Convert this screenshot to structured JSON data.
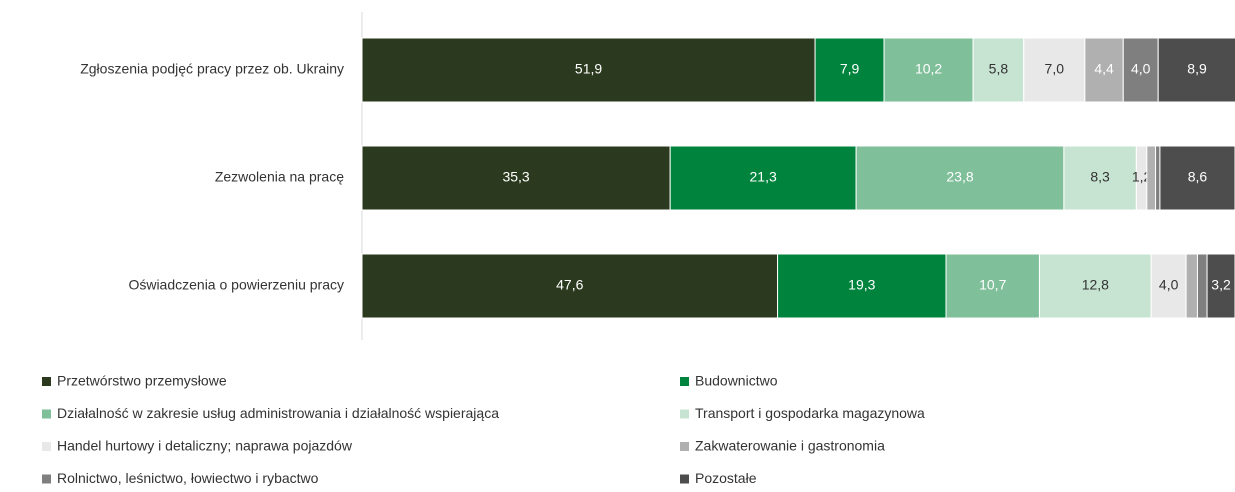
{
  "chart_data": {
    "type": "stacked_bar_horizontal",
    "categories": [
      "Zgłoszenia podjęć pracy przez ob. Ukrainy",
      "Zezwolenia na pracę",
      "Oświadczenia o powierzeniu pracy"
    ],
    "xlim": [
      0,
      100
    ],
    "series": [
      {
        "name": "Przetwórstwo przemysłowe",
        "color": "#2b3a1e",
        "values": [
          51.9,
          35.3,
          47.6
        ],
        "value_labels": [
          "51,9",
          "35,3",
          "47,6"
        ]
      },
      {
        "name": "Budownictwo",
        "color": "#00843d",
        "values": [
          7.9,
          21.3,
          19.3
        ],
        "value_labels": [
          "7,9",
          "21,3",
          "19,3"
        ]
      },
      {
        "name": "Działalność w zakresie usług administrowania i działalność wspierająca",
        "color": "#7fbf9a",
        "values": [
          10.2,
          23.8,
          10.7
        ],
        "value_labels": [
          "10,2",
          "23,8",
          "10,7"
        ]
      },
      {
        "name": "Transport i gospodarka magazynowa",
        "color": "#c6e4d1",
        "values": [
          5.8,
          8.3,
          12.8
        ],
        "value_labels": [
          "5,8",
          "8,3",
          "12,8"
        ]
      },
      {
        "name": "Handel hurtowy i detaliczny; naprawa pojazdów",
        "color": "#e8e8e8",
        "values": [
          7.0,
          1.2,
          4.0
        ],
        "value_labels": [
          "7,0",
          "1,2",
          "4,0"
        ]
      },
      {
        "name": "Zakwaterowanie i gastronomia",
        "color": "#b0b0b0",
        "values": [
          4.4,
          1.0,
          1.3
        ],
        "value_labels": [
          "4,4",
          null,
          null
        ]
      },
      {
        "name": "Rolnictwo, leśnictwo, łowiectwo i rybactwo",
        "color": "#7f7f7f",
        "values": [
          4.0,
          0.5,
          1.1
        ],
        "value_labels": [
          "4,0",
          null,
          null
        ]
      },
      {
        "name": "Pozostałe",
        "color": "#4d4d4d",
        "values": [
          8.9,
          8.6,
          3.2
        ],
        "value_labels": [
          "8,9",
          "8,6",
          "3,2"
        ]
      }
    ]
  }
}
